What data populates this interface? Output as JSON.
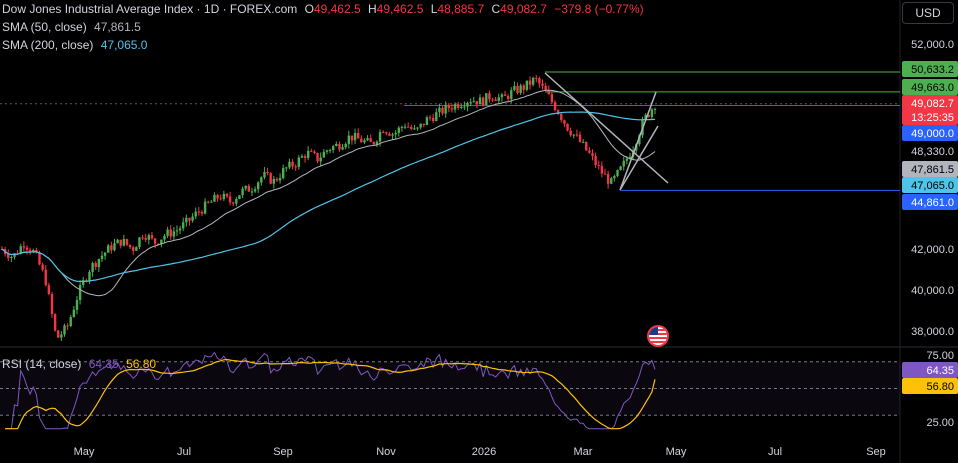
{
  "title_legend": {
    "name": "Dow Jones Industrial Average Index · 1D · FOREX.com",
    "o_label": "O",
    "o": "49,462.5",
    "h_label": "H",
    "h": "49,462.5",
    "l_label": "L",
    "l": "48,885.7",
    "c_label": "C",
    "c": "49,082.7",
    "change": "−379.8 (−0.77%)"
  },
  "sma50": {
    "label": "SMA (50, close)",
    "value": "47,861.5",
    "color": "#b2b5be"
  },
  "sma200": {
    "label": "SMA (200, close)",
    "value": "47,065.0",
    "color": "#4fc3e8"
  },
  "currency_button": "USD",
  "rsi_legend": {
    "label": "RSI (14, close)",
    "value": "64.35",
    "sma": "56.80",
    "color": "#7e57c2",
    "sma_color": "#ffc107"
  },
  "events_icon": "us-flag-icon",
  "colors": {
    "up": "#26a69a",
    "down": "#ef5350",
    "bull_candle": "#4caf50",
    "bear_candle": "#f23645",
    "hline": "#2962ff",
    "green_line": "#4caf50"
  },
  "chart_data": {
    "type": "candlestick",
    "price_axis_ticks": [
      "52,000.0",
      "42,000.0",
      "40,000.0",
      "38,000.0"
    ],
    "time_axis_ticks": [
      "May",
      "Jul",
      "Sep",
      "Nov",
      "2026",
      "Mar",
      "May",
      "Jul",
      "Sep"
    ],
    "ylim": [
      36000,
      52600
    ],
    "price_labels": [
      {
        "text": "50,633.2",
        "value": 50633.2,
        "bg": "#4caf50",
        "fg": "#000000"
      },
      {
        "text": "49,663.0",
        "value": 49663.0,
        "bg": "#4caf50",
        "fg": "#000000"
      },
      {
        "text": "49,082.7",
        "value": 49082.7,
        "bg": "#f23645",
        "fg": "#ffffff"
      },
      {
        "text": "13:25:35",
        "value": null,
        "bg": "#f23645",
        "fg": "#ffffff"
      },
      {
        "text": "49,000.0",
        "value": 49000.0,
        "bg": "#2962ff",
        "fg": "#ffffff"
      },
      {
        "text": "48,330.0",
        "value": 48330.0,
        "bg": "#000000",
        "fg": "#d1d4dc"
      },
      {
        "text": "47,861.5",
        "value": 47861.5,
        "bg": "#b2b5be",
        "fg": "#000000"
      },
      {
        "text": "47,065.0",
        "value": 47065.0,
        "bg": "#4fc3e8",
        "fg": "#000000"
      },
      {
        "text": "44,861.0",
        "value": 44861.0,
        "bg": "#2962ff",
        "fg": "#ffffff"
      }
    ],
    "horizontal_levels": [
      50633.2,
      49663.0,
      49000.0,
      44861.0
    ],
    "close_series_approx": [
      42000,
      41600,
      42300,
      41800,
      40500,
      37600,
      38200,
      39800,
      41000,
      41600,
      42100,
      42400,
      42000,
      42800,
      42300,
      42700,
      42900,
      43300,
      43800,
      44200,
      44600,
      44300,
      44800,
      45000,
      45600,
      45300,
      45900,
      46200,
      46700,
      46400,
      46900,
      47100,
      47500,
      47300,
      47100,
      47900,
      47600,
      48100,
      47700,
      48300,
      48600,
      48900,
      49100,
      49300,
      49200,
      49500,
      49300,
      49700,
      49900,
      50300,
      49600,
      48800,
      47900,
      47300,
      46600,
      45800,
      45200,
      46000,
      47000,
      48300,
      49082.7
    ],
    "rsi": {
      "ylim": [
        0,
        100
      ],
      "levels": [
        70,
        50,
        30
      ],
      "ticks": [
        "75.00",
        "25.00"
      ],
      "last": 64.35,
      "sma_last": 56.8
    }
  }
}
